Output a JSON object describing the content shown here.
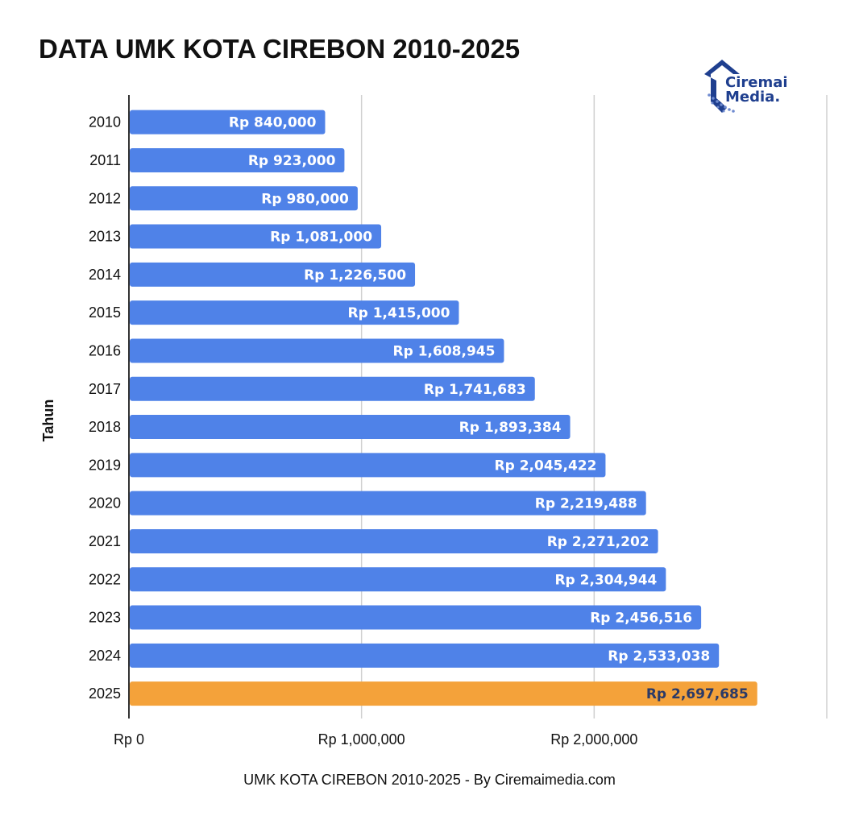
{
  "chart_data": {
    "type": "bar",
    "orientation": "horizontal",
    "title": "DATA UMK KOTA CIREBON 2010-2025",
    "ylabel": "Tahun",
    "caption": "UMK KOTA CIREBON 2010-2025 - By Ciremaimedia.com",
    "categories": [
      "2010",
      "2011",
      "2012",
      "2013",
      "2014",
      "2015",
      "2016",
      "2017",
      "2018",
      "2019",
      "2020",
      "2021",
      "2022",
      "2023",
      "2024",
      "2025"
    ],
    "values": [
      840000,
      923000,
      980000,
      1081000,
      1226500,
      1415000,
      1608945,
      1741683,
      1893384,
      2045422,
      2219488,
      2271202,
      2304944,
      2456516,
      2533038,
      2697685
    ],
    "value_labels": [
      "Rp 840,000",
      "Rp 923,000",
      "Rp 980,000",
      "Rp 1,081,000",
      "Rp 1,226,500",
      "Rp 1,415,000",
      "Rp 1,608,945",
      "Rp 1,741,683",
      "Rp 1,893,384",
      "Rp 2,045,422",
      "Rp 2,219,488",
      "Rp 2,271,202",
      "Rp 2,304,944",
      "Rp 2,456,516",
      "Rp 2,533,038",
      "Rp 2,697,685"
    ],
    "xticks": [
      0,
      1000000,
      2000000,
      3000000
    ],
    "xtick_labels": [
      "Rp 0",
      "Rp 1,000,000",
      "Rp 2,000,000",
      ""
    ],
    "xlim": [
      0,
      3000000
    ],
    "grid": true,
    "colors": {
      "bar": "#4f82e8",
      "highlight": "#f4a23a",
      "label_light": "#ffffff",
      "label_dark": "#2b3a67",
      "grid": "#d0d0d0",
      "axis": "#333333"
    },
    "highlight_category": "2025"
  },
  "logo": {
    "line1": "Ciremai",
    "line2": "Media.",
    "icon": "ciremai-media-logo-icon",
    "color": "#1f3f8f"
  }
}
